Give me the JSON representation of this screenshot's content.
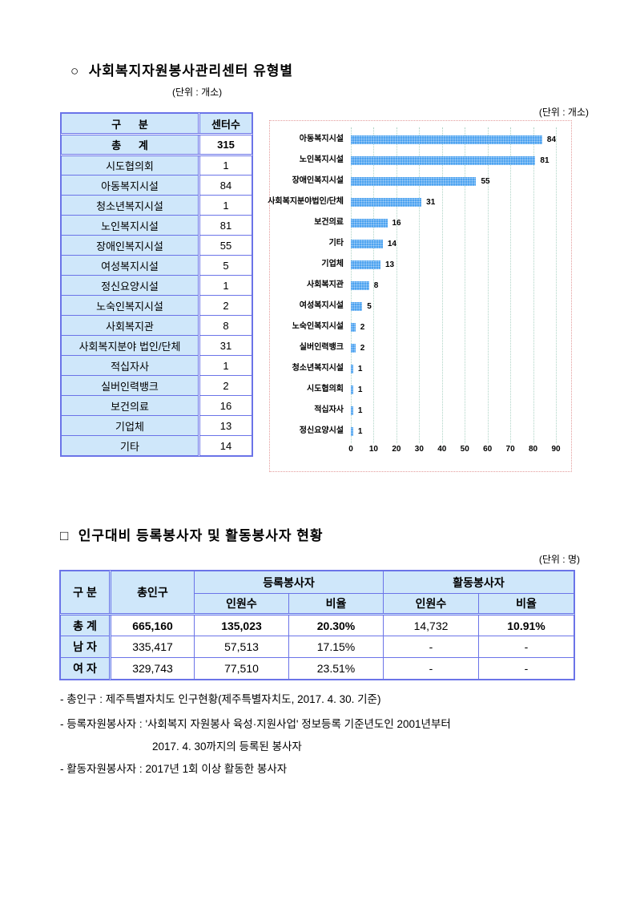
{
  "colors": {
    "table_border": "#6b74e8",
    "table_header_bg": "#cfe7fa",
    "bar_blue": "#4da3f0",
    "chart_border": "#e39b9b",
    "gridline": "#aed4c6"
  },
  "section1": {
    "bullet": "○",
    "title": "사회복지자원봉사관리센터 유형별",
    "unit_label": "(단위 : 개소)",
    "table": {
      "headers": [
        "구      분",
        "센터수"
      ],
      "rows": [
        {
          "label": "총      계",
          "value": "315",
          "total": true
        },
        {
          "label": "시도협의회",
          "value": "1"
        },
        {
          "label": "아동복지시설",
          "value": "84"
        },
        {
          "label": "청소년복지시설",
          "value": "1"
        },
        {
          "label": "노인복지시설",
          "value": "81"
        },
        {
          "label": "장애인복지시설",
          "value": "55"
        },
        {
          "label": "여성복지시설",
          "value": "5"
        },
        {
          "label": "정신요양시설",
          "value": "1"
        },
        {
          "label": "노숙인복지시설",
          "value": "2"
        },
        {
          "label": "사회복지관",
          "value": "8"
        },
        {
          "label": "사회복지분야 법인/단체",
          "value": "31"
        },
        {
          "label": "적십자사",
          "value": "1"
        },
        {
          "label": "실버인력뱅크",
          "value": "2"
        },
        {
          "label": "보건의료",
          "value": "16"
        },
        {
          "label": "기업체",
          "value": "13"
        },
        {
          "label": "기타",
          "value": "14"
        }
      ]
    }
  },
  "chart_data": {
    "type": "bar",
    "orientation": "horizontal",
    "unit_label": "(단위 : 개소)",
    "categories": [
      "아동복지시설",
      "노인복지시설",
      "장애인복지시설",
      "사회복지분야법인/단체",
      "보건의료",
      "기타",
      "기업체",
      "사회복지관",
      "여성복지시설",
      "노숙인복지시설",
      "실버인력뱅크",
      "청소년복지시설",
      "시도협의회",
      "적십자사",
      "정신요양시설"
    ],
    "values": [
      84,
      81,
      55,
      31,
      16,
      14,
      13,
      8,
      5,
      2,
      2,
      1,
      1,
      1,
      1
    ],
    "xlim": [
      0,
      90
    ],
    "xticks": [
      0,
      10,
      20,
      30,
      40,
      50,
      60,
      70,
      80,
      90
    ],
    "grid": true,
    "value_labels": true,
    "legend": "none",
    "bar_color": "#4da3f0"
  },
  "section2": {
    "bullet": "□",
    "title": "인구대비 등록봉사자 및 활동봉사자 현황",
    "unit_label": "(단위 : 명)",
    "table": {
      "col_group": "구 분",
      "col_population": "총인구",
      "group_registered": "등록봉사자",
      "group_active": "활동봉사자",
      "sub_count": "인원수",
      "sub_ratio": "비율",
      "rows": [
        {
          "label": "총 계",
          "cells": [
            "665,160",
            "135,023",
            "20.30%",
            "14,732",
            "10.91%"
          ],
          "bold_cells": [
            true,
            true,
            true,
            false,
            true
          ]
        },
        {
          "label": "남 자",
          "cells": [
            "335,417",
            "57,513",
            "17.15%",
            "-",
            "-"
          ],
          "bold_cells": [
            false,
            false,
            false,
            false,
            false
          ]
        },
        {
          "label": "여 자",
          "cells": [
            "329,743",
            "77,510",
            "23.51%",
            "-",
            "-"
          ],
          "bold_cells": [
            false,
            false,
            false,
            false,
            false
          ]
        }
      ]
    },
    "footnotes": [
      {
        "text": "- 총인구 : 제주특별자치도 인구현황(제주특별자치도, 2017. 4. 30. 기준)",
        "indent": false
      },
      {
        "text": "- 등록자원봉사자 : '사회복지 자원봉사 육성·지원사업' 정보등록 기준년도인 2001년부터",
        "indent": false
      },
      {
        "text": "2017. 4. 30까지의 등록된 봉사자",
        "indent": true
      },
      {
        "text": "- 활동자원봉사자 : 2017년 1회 이상 활동한 봉사자",
        "indent": false
      }
    ]
  }
}
